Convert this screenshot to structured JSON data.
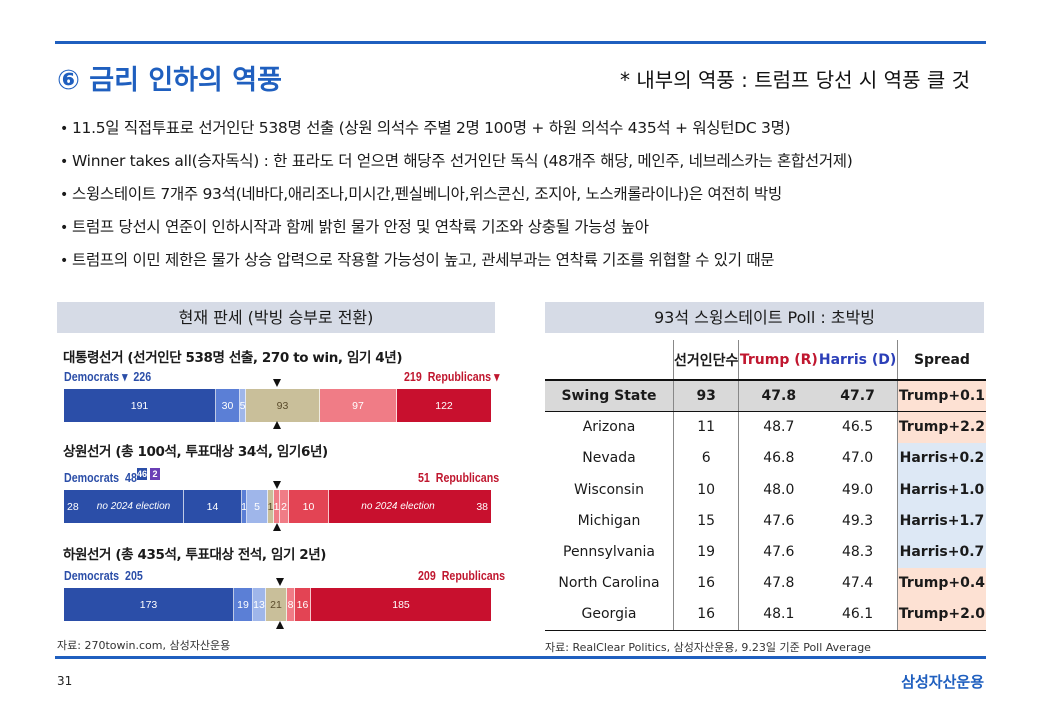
{
  "title": "⑥ 금리 인하의 역풍",
  "subtitle": "* 내부의 역풍 : 트럼프 당선 시 역풍 클 것",
  "bullets": [
    "11.5일 직접투표로 선거인단 538명 선출 (상원 의석수 주별 2명 100명 + 하원 의석수 435석 + 워싱턴DC 3명)",
    "Winner takes all(승자독식) : 한 표라도 더 얻으면 해당주 선거인단 독식 (48개주 해당, 메인주, 네브레스카는 혼합선거제)",
    "스윙스테이트 7개주 93석(네바다,애리조나,미시간,펜실베니아,위스콘신, 조지아, 노스캐롤라이나)은 여전히 박빙",
    "트럼프 당선시 연준이 인하시작과 함께 밝힌 물가 안정 및 연착륙 기조와 상충될 가능성 높아",
    "트럼프의 이민 제한은 물가 상승 압력으로 작용할 가능성이 높고, 관세부과는 연착륙 기조를 위협할 수 있기 때문"
  ],
  "left_panel": {
    "header": "현재 판세 (박빙 승부로 전환)",
    "source": "자료: 270towin.com, 삼성자산운용",
    "sections": [
      {
        "title": "대통령선거 (선거인단 538명 선출, 270 to win, 임기 4년)",
        "dem_label": "Democrats ▾",
        "dem_total": "226",
        "rep_total": "219",
        "rep_label": "Republicans ▾",
        "segments": [
          "191",
          "30",
          "5",
          "93",
          "97",
          "122"
        ]
      },
      {
        "title": "상원선거 (총 100석, 투표대상 34석, 임기6년)",
        "dem_label": "Democrats",
        "dem_total": "48",
        "badge_i": "46",
        "badge_2": "2",
        "rep_total": "51",
        "rep_label": "Republicans",
        "segments": [
          "28",
          "no 2024 election",
          "14",
          "1",
          "5",
          "1",
          "1",
          "2",
          "10",
          "no 2024 election",
          "38"
        ]
      },
      {
        "title": "하원선거 (총 435석, 투표대상 전석, 임기 2년)",
        "dem_label": "Democrats",
        "dem_total": "205",
        "rep_total": "209",
        "rep_label": "Republicans",
        "segments": [
          "173",
          "19",
          "13",
          "21",
          "8",
          "16",
          "185"
        ]
      }
    ]
  },
  "right_panel": {
    "header": "93석 스윙스테이트 Poll : 초박빙",
    "source": "자료: RealClear Politics, 삼성자산운용, 9.23일 기준 Poll Average",
    "columns": [
      "",
      "선거인단수",
      "Trump (R)",
      "Harris (D)",
      "Spread"
    ],
    "rows": [
      {
        "state": "Swing State",
        "electors": "93",
        "trump": "47.8",
        "harris": "47.7",
        "spread": "Trump+0.1",
        "lean": "trump"
      },
      {
        "state": "Arizona",
        "electors": "11",
        "trump": "48.7",
        "harris": "46.5",
        "spread": "Trump+2.2",
        "lean": "trump"
      },
      {
        "state": "Nevada",
        "electors": "6",
        "trump": "46.8",
        "harris": "47.0",
        "spread": "Harris+0.2",
        "lean": "harris"
      },
      {
        "state": "Wisconsin",
        "electors": "10",
        "trump": "48.0",
        "harris": "49.0",
        "spread": "Harris+1.0",
        "lean": "harris"
      },
      {
        "state": "Michigan",
        "electors": "15",
        "trump": "47.6",
        "harris": "49.3",
        "spread": "Harris+1.7",
        "lean": "harris"
      },
      {
        "state": "Pennsylvania",
        "electors": "19",
        "trump": "47.6",
        "harris": "48.3",
        "spread": "Harris+0.7",
        "lean": "harris"
      },
      {
        "state": "North Carolina",
        "electors": "16",
        "trump": "47.8",
        "harris": "47.4",
        "spread": "Trump+0.4",
        "lean": "trump"
      },
      {
        "state": "Georgia",
        "electors": "16",
        "trump": "48.1",
        "harris": "46.1",
        "spread": "Trump+2.0",
        "lean": "trump"
      }
    ]
  },
  "footer": {
    "page_number": "31",
    "brand": "삼성자산운용"
  },
  "colors": {
    "accent": "#1f5fbf",
    "dem_dark": "#2b4ea8",
    "dem_mid": "#5b7fd6",
    "dem_light": "#9fb6ea",
    "tossup": "#c9bf9a",
    "rep_light": "#f07c86",
    "rep_mid": "#e34454",
    "rep_dark": "#c8102e"
  }
}
